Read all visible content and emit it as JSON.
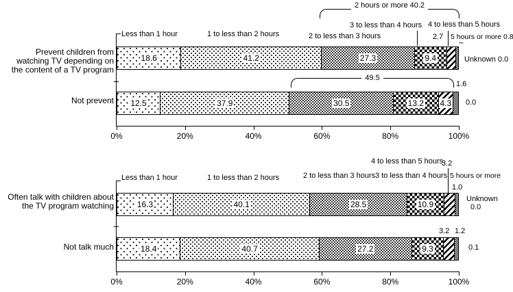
{
  "chart_data": [
    {
      "type": "bar",
      "variant": "horizontal-stacked",
      "panel": "tv-content-prevention",
      "series_labels": [
        "Less than 1 hour",
        "1 to less than 2 hours",
        "2 to less than 3 hours",
        "3 to less than 4 hours",
        "4 to less than 5 hours",
        "5 hours or more",
        "Unknown"
      ],
      "bars": [
        {
          "category": "Prevent children from\nwatching TV depending on\nthe content of a TV program",
          "values": [
            18.6,
            41.2,
            27.3,
            9.4,
            2.7,
            0.8,
            0.0
          ]
        },
        {
          "category": "Not prevent",
          "values": [
            12.5,
            37.9,
            30.5,
            13.2,
            4.3,
            1.6,
            0.0
          ]
        }
      ],
      "x_ticks": [
        "0%",
        "20%",
        "40%",
        "60%",
        "80%",
        "100%"
      ],
      "xlim": [
        0,
        100
      ],
      "annotations": {
        "bar1_group_bracket": "2 hours or more 40.2",
        "header_less_than_1": "Less than 1 hour",
        "header_1_to_2": "1 to less than 2 hours",
        "header_2_to_3": "2 to less than 3 hours",
        "header_3_to_4": "3 to less than 4 hours",
        "header_4_to_5": "4 to less than 5 hours",
        "bar1_4_to_5_value": "2.7",
        "header_5_plus_with_value": "5 hours or more 0.8",
        "bar1_unknown": "Unknown 0.0",
        "bar2_group_bracket": "49.5",
        "bar2_5_plus_value": "1.6",
        "bar2_unknown_value": "0.0",
        "squiggle": "~"
      }
    },
    {
      "type": "bar",
      "variant": "horizontal-stacked",
      "panel": "talking-about-tv-programs",
      "series_labels": [
        "Less than 1 hour",
        "1 to less than 2 hours",
        "2 to less than 3 hours",
        "3 to less than 4 hours",
        "4 to less than 5 hours",
        "5 hours or more",
        "Unknown"
      ],
      "bars": [
        {
          "category": "Often talk with children about\nthe TV program watching",
          "values": [
            16.3,
            40.1,
            28.5,
            10.9,
            3.2,
            1.0,
            0.0
          ]
        },
        {
          "category": "Not talk much",
          "values": [
            18.4,
            40.7,
            27.2,
            9.3,
            3.2,
            1.2,
            0.1
          ]
        }
      ],
      "x_ticks": [
        "0%",
        "20%",
        "40%",
        "60%",
        "80%",
        "100%"
      ],
      "xlim": [
        0,
        100
      ],
      "annotations": {
        "header_less_than_1": "Less than 1 hour",
        "header_1_to_2": "1 to less than 2 hours",
        "header_4_to_5": "4 to less than 5 hours",
        "bar1_4_to_5_value": "3.2",
        "header_2_to_3": "2 to less than 3 hours",
        "header_3_to_4": "3 to less than 4 hours",
        "header_5_plus": "5 hours or more",
        "bar1_5_plus_value": "1.0",
        "bar1_unknown_label": "Unknown",
        "bar1_unknown_value": "0.0",
        "bar2_4_to_5_value": "3.2",
        "bar2_5_plus_value": "1.2",
        "bar2_unknown_value": "0.1"
      }
    }
  ]
}
